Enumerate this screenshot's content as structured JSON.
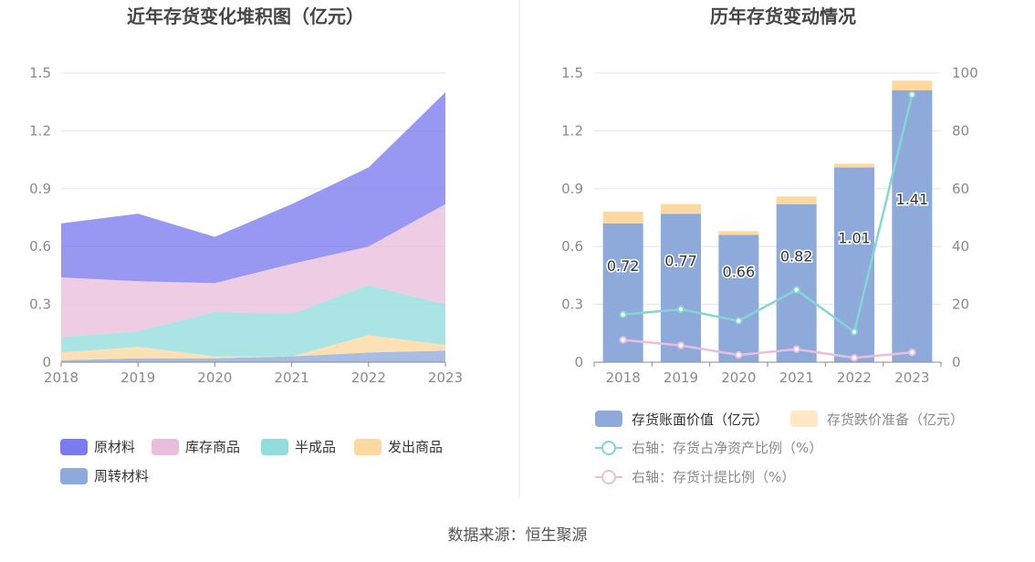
{
  "source_text": "数据来源：恒生聚源",
  "chart_data": [
    {
      "type": "area",
      "stacked": true,
      "title": "近年存货变化堆积图（亿元）",
      "x": [
        "2018",
        "2019",
        "2020",
        "2021",
        "2022",
        "2023"
      ],
      "ylim": [
        0,
        1.5
      ],
      "yticks": [
        "0",
        "0.3",
        "0.6",
        "0.9",
        "1.2",
        "1.5"
      ],
      "grid": true,
      "legend_position": "bottom",
      "series": [
        {
          "name": "周转材料",
          "color": "#8eaadb",
          "values": [
            0.01,
            0.02,
            0.02,
            0.03,
            0.05,
            0.06
          ]
        },
        {
          "name": "发出商品",
          "color": "#fdd9a0",
          "values": [
            0.04,
            0.06,
            0.01,
            0.0,
            0.09,
            0.03
          ]
        },
        {
          "name": "半成品",
          "color": "#93dcdc",
          "values": [
            0.08,
            0.08,
            0.23,
            0.22,
            0.26,
            0.21
          ]
        },
        {
          "name": "库存商品",
          "color": "#e9bedd",
          "values": [
            0.31,
            0.26,
            0.15,
            0.26,
            0.2,
            0.52
          ]
        },
        {
          "name": "原材料",
          "color": "#7b7bf0",
          "values": [
            0.28,
            0.35,
            0.24,
            0.31,
            0.41,
            0.58
          ]
        }
      ],
      "legend_order": [
        "原材料",
        "库存商品",
        "半成品",
        "发出商品",
        "周转材料"
      ]
    },
    {
      "type": "bar",
      "title": "历年存货变动情况",
      "categories": [
        "2018",
        "2019",
        "2020",
        "2021",
        "2022",
        "2023"
      ],
      "ylim": [
        0,
        1.5
      ],
      "yticks": [
        "0",
        "0.3",
        "0.6",
        "0.9",
        "1.2",
        "1.5"
      ],
      "y2lim": [
        0,
        100
      ],
      "y2ticks": [
        "0",
        "20",
        "40",
        "60",
        "80",
        "100"
      ],
      "grid": true,
      "legend_position": "bottom",
      "series": [
        {
          "name": "存货账面价值（亿元）",
          "color": "#8eaadb",
          "values": [
            0.72,
            0.77,
            0.66,
            0.82,
            1.01,
            1.41
          ],
          "labels": [
            "0.72",
            "0.77",
            "0.66",
            "0.82",
            "1.01",
            "1.41"
          ]
        },
        {
          "name": "存货跌价准备（亿元）",
          "color": "#fdd9a0",
          "values": [
            0.06,
            0.05,
            0.02,
            0.04,
            0.02,
            0.05
          ]
        }
      ],
      "line_series": [
        {
          "name": "右轴：存货占净资产比例（%）",
          "color": "#86d4d4",
          "axis": "right",
          "values": [
            16.5,
            18.3,
            14.3,
            25.0,
            10.5,
            92.5
          ]
        },
        {
          "name": "右轴：存货计提比例（%）",
          "color": "#e9bedd",
          "axis": "right",
          "values": [
            7.7,
            5.8,
            2.5,
            4.5,
            1.5,
            3.4
          ]
        }
      ]
    }
  ]
}
